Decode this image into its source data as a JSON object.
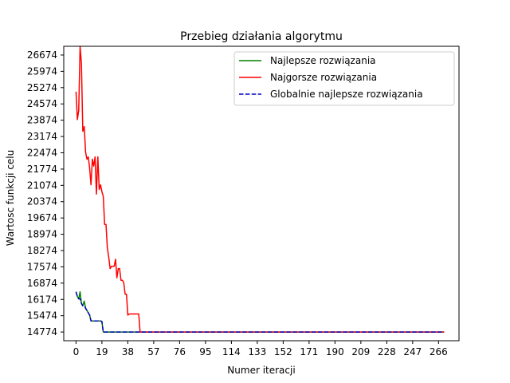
{
  "chart_data": {
    "type": "line",
    "title": "Przebieg działania algorytmu",
    "xlabel": "Numer iteracji",
    "ylabel": "Wartosc funkcji celu",
    "xlim": [
      -9,
      281
    ],
    "ylim": [
      14400,
      27050
    ],
    "xticks": [
      0,
      19,
      38,
      57,
      76,
      95,
      114,
      133,
      152,
      171,
      190,
      209,
      228,
      247,
      266
    ],
    "yticks": [
      14774,
      15474,
      16174,
      16874,
      17574,
      18274,
      18974,
      19674,
      20374,
      21074,
      21774,
      22474,
      23174,
      23874,
      24574,
      25274,
      25974,
      26674
    ],
    "legend_position": "upper right",
    "series": [
      {
        "name": "Najlepsze rozwiązania",
        "color": "#008000",
        "dash": "solid",
        "points": [
          [
            0,
            16500
          ],
          [
            1,
            16300
          ],
          [
            2,
            16200
          ],
          [
            3,
            16500
          ],
          [
            4,
            16000
          ],
          [
            5,
            15900
          ],
          [
            6,
            16100
          ],
          [
            7,
            15800
          ],
          [
            8,
            15700
          ],
          [
            10,
            15500
          ],
          [
            11,
            15250
          ],
          [
            14,
            15250
          ],
          [
            18,
            15250
          ],
          [
            19,
            15220
          ],
          [
            20,
            14774
          ],
          [
            270,
            14774
          ]
        ]
      },
      {
        "name": "Najgorsze rozwiązania",
        "color": "#ff0000",
        "dash": "solid",
        "points": [
          [
            0,
            25100
          ],
          [
            1,
            23900
          ],
          [
            2,
            24300
          ],
          [
            3,
            27050
          ],
          [
            4,
            26300
          ],
          [
            5,
            23400
          ],
          [
            6,
            23600
          ],
          [
            7,
            22500
          ],
          [
            8,
            22200
          ],
          [
            9,
            22300
          ],
          [
            10,
            21800
          ],
          [
            11,
            21100
          ],
          [
            12,
            22200
          ],
          [
            13,
            21900
          ],
          [
            14,
            22300
          ],
          [
            15,
            20700
          ],
          [
            16,
            22300
          ],
          [
            17,
            20900
          ],
          [
            18,
            21100
          ],
          [
            19,
            20800
          ],
          [
            20,
            20600
          ],
          [
            21,
            19400
          ],
          [
            22,
            19400
          ],
          [
            23,
            18400
          ],
          [
            24,
            18000
          ],
          [
            25,
            17500
          ],
          [
            26,
            17600
          ],
          [
            28,
            17600
          ],
          [
            29,
            17900
          ],
          [
            30,
            17100
          ],
          [
            31,
            17500
          ],
          [
            32,
            17500
          ],
          [
            33,
            17000
          ],
          [
            34,
            17000
          ],
          [
            35,
            16900
          ],
          [
            36,
            16400
          ],
          [
            37,
            16400
          ],
          [
            38,
            15500
          ],
          [
            39,
            15550
          ],
          [
            46,
            15550
          ],
          [
            47,
            14774
          ],
          [
            270,
            14774
          ]
        ]
      },
      {
        "name": "Globalnie najlepsze rozwiązania",
        "color": "#0000bf",
        "dash": "dashed",
        "points": [
          [
            0,
            16500
          ],
          [
            1,
            16300
          ],
          [
            2,
            16200
          ],
          [
            3,
            16200
          ],
          [
            4,
            16000
          ],
          [
            5,
            15900
          ],
          [
            6,
            15900
          ],
          [
            7,
            15800
          ],
          [
            8,
            15700
          ],
          [
            10,
            15500
          ],
          [
            11,
            15250
          ],
          [
            14,
            15250
          ],
          [
            18,
            15250
          ],
          [
            19,
            15220
          ],
          [
            20,
            14774
          ],
          [
            270,
            14774
          ]
        ]
      }
    ]
  }
}
